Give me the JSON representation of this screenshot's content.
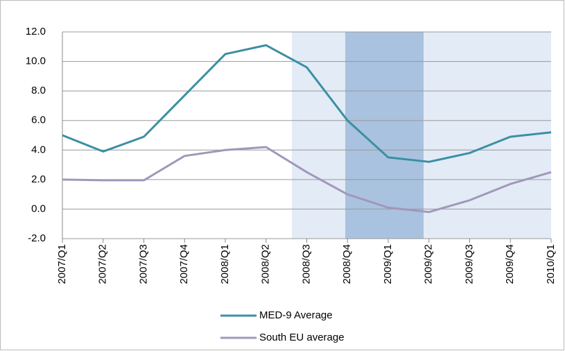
{
  "chart_data": {
    "type": "line",
    "categories": [
      "2007/Q1",
      "2007/Q2",
      "2007/Q3",
      "2007/Q4",
      "2008/Q1",
      "2008/Q2",
      "2008/Q3",
      "2008/Q4",
      "2009/Q1",
      "2009/Q2",
      "2009/Q3",
      "2009/Q4",
      "2010/Q1"
    ],
    "series": [
      {
        "name": "MED-9 Average",
        "color": "#3b8fa3",
        "values": [
          5.0,
          3.9,
          4.9,
          7.7,
          10.5,
          11.1,
          9.6,
          6.0,
          3.5,
          3.2,
          3.8,
          4.9,
          5.2
        ]
      },
      {
        "name": "South EU average",
        "color": "#a197bb",
        "values": [
          2.0,
          1.95,
          1.95,
          3.6,
          4.0,
          4.2,
          2.5,
          1.0,
          0.1,
          -0.2,
          0.6,
          1.7,
          2.5
        ]
      }
    ],
    "ylim": [
      -2,
      12
    ],
    "yticks": [
      {
        "value": -2,
        "label": "-2.0"
      },
      {
        "value": 0,
        "label": "0.0"
      },
      {
        "value": 2,
        "label": "2.0"
      },
      {
        "value": 4,
        "label": "4.0"
      },
      {
        "value": 6,
        "label": "6.0"
      },
      {
        "value": 8,
        "label": "8.0"
      },
      {
        "value": 10,
        "label": "10.0"
      },
      {
        "value": 12,
        "label": "12.0"
      }
    ],
    "grid": true
  }
}
